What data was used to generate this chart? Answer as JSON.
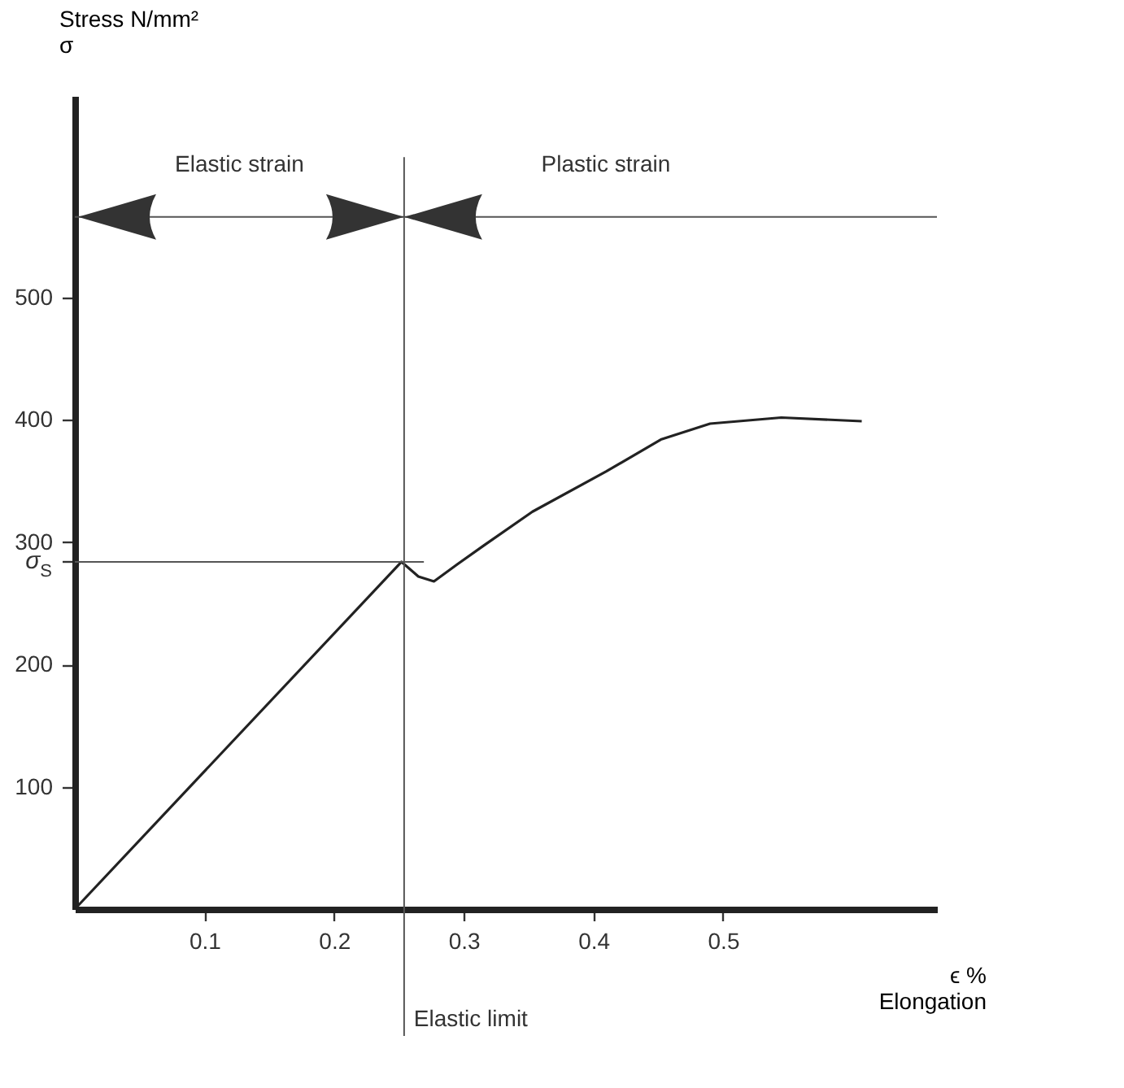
{
  "chart_data": {
    "type": "line",
    "xlabel": "ϵ %\nElongation",
    "ylabel": "Stress N/mm²\nσ",
    "x": [
      0,
      0.252,
      0.265,
      0.277,
      0.295,
      0.315,
      0.353,
      0.41,
      0.452,
      0.49,
      0.545,
      0.607
    ],
    "series": [
      {
        "color": "#222222",
        "values": [
          0,
          284,
          272,
          268,
          282,
          297,
          325,
          358,
          384,
          397,
          402,
          399
        ]
      }
    ],
    "xlim": [
      0,
      0.665
    ],
    "xticks": [
      0.1,
      0.2,
      0.3,
      0.4,
      0.5
    ],
    "ylim": [
      0,
      665
    ],
    "yticks": [
      100,
      200,
      300,
      400,
      500,
      {
        "value": 284,
        "label": "σ$_{S}$"
      }
    ],
    "grid": false,
    "marker": "none",
    "line_style": "solid",
    "ref_lines": [
      {
        "axis": "x",
        "value": 0.254,
        "label": "Elastic limit"
      },
      {
        "axis": "y",
        "value": 284,
        "label": null
      },
      {
        "axis": "y",
        "value": 566,
        "label": null
      }
    ],
    "annotations": [
      "Elastic strain",
      "Plastic strain"
    ]
  }
}
